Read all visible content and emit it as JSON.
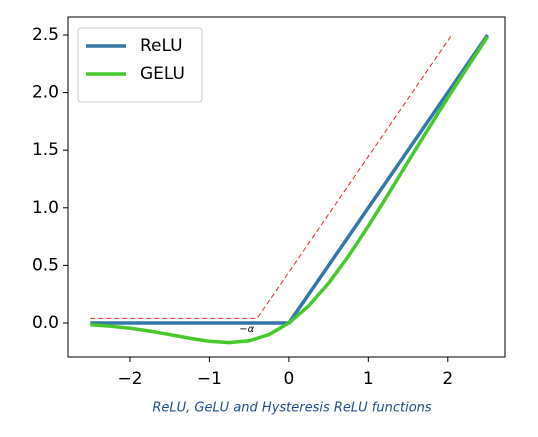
{
  "chart_data": {
    "type": "line",
    "caption": "ReLU, GeLU and Hysteresis ReLU functions",
    "series": [
      {
        "name": "ReLU",
        "color": "#3477ab",
        "dashed": false,
        "x": [
          -2.5,
          -2.25,
          -2.0,
          -1.75,
          -1.5,
          -1.25,
          -1.0,
          -0.75,
          -0.5,
          -0.25,
          0,
          0.25,
          0.5,
          0.75,
          1.0,
          1.25,
          1.5,
          1.75,
          2.0,
          2.25,
          2.5
        ],
        "values": [
          0,
          0,
          0,
          0,
          0,
          0,
          0,
          0,
          0,
          0,
          0,
          0.25,
          0.5,
          0.75,
          1.0,
          1.25,
          1.5,
          1.75,
          2.0,
          2.25,
          2.5
        ]
      },
      {
        "name": "GELU",
        "color": "#47c92b",
        "dashed": false,
        "x": [
          -2.5,
          -2.25,
          -2.0,
          -1.75,
          -1.5,
          -1.25,
          -1.0,
          -0.75,
          -0.5,
          -0.25,
          0,
          0.25,
          0.5,
          0.75,
          1.0,
          1.25,
          1.5,
          1.75,
          2.0,
          2.25,
          2.5
        ],
        "values": [
          -0.0155,
          -0.0275,
          -0.0455,
          -0.0701,
          -0.1002,
          -0.1321,
          -0.1587,
          -0.17,
          -0.1543,
          -0.1003,
          0,
          0.1497,
          0.3457,
          0.58,
          0.8413,
          1.1179,
          1.3998,
          1.6799,
          1.9545,
          2.2225,
          2.4845
        ]
      },
      {
        "color": "#e8261f",
        "dashed": true,
        "x": [
          -2.5,
          -0.4,
          2.05
        ],
        "values": [
          0.04,
          0.04,
          2.5
        ]
      }
    ],
    "annotations": [
      {
        "text": "−α",
        "x": -0.53,
        "y": -0.05
      }
    ],
    "xlim": [
      -2.78,
      2.72
    ],
    "xticks": [
      {
        "value": -2,
        "label": "−2"
      },
      {
        "value": -1,
        "label": "−1"
      },
      0,
      1,
      2
    ],
    "ylim": [
      -0.295,
      2.656
    ],
    "yticks": [
      {
        "value": 0,
        "label": "0.0"
      },
      0.5,
      {
        "value": 1,
        "label": "1.0"
      },
      1.5,
      {
        "value": 2,
        "label": "2.0"
      },
      2.5
    ],
    "legend": "upper left"
  }
}
